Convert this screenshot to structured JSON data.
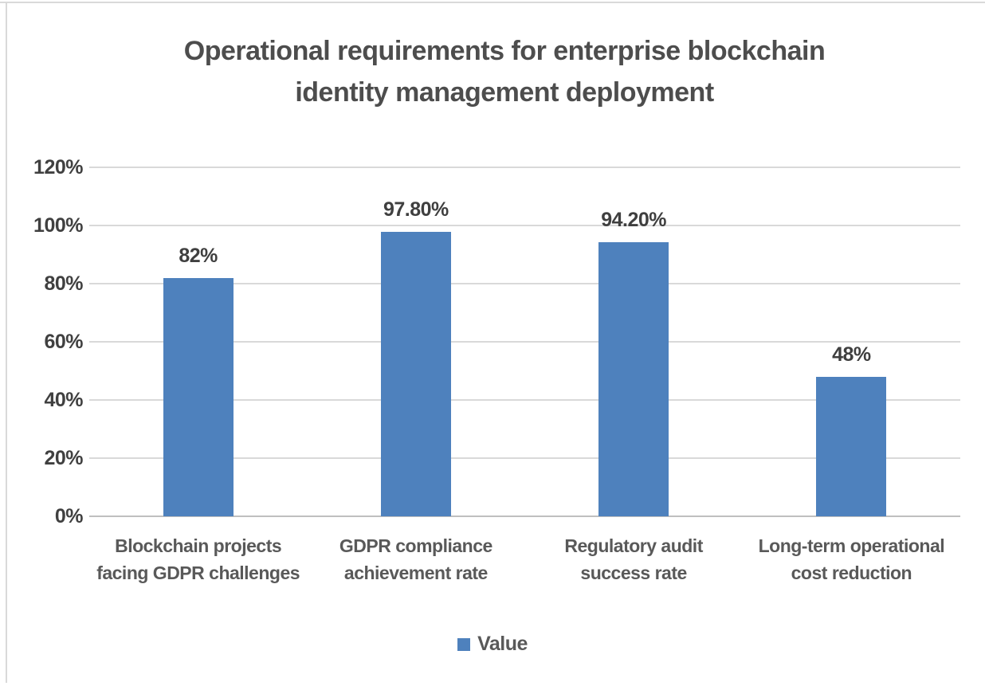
{
  "title": {
    "line1": "Operational requirements for enterprise blockchain",
    "line2": "identity management deployment"
  },
  "chart_data": {
    "type": "bar",
    "title": "Operational requirements for enterprise blockchain identity management deployment",
    "categories": [
      "Blockchain projects facing GDPR challenges",
      "GDPR compliance achievement rate",
      "Regulatory audit success rate",
      "Long-term operational cost reduction"
    ],
    "category_lines": [
      [
        "Blockchain projects",
        "facing GDPR challenges"
      ],
      [
        "GDPR compliance",
        "achievement rate"
      ],
      [
        "Regulatory audit",
        "success rate"
      ],
      [
        "Long-term operational",
        "cost reduction"
      ]
    ],
    "series": [
      {
        "name": "Value",
        "values": [
          82,
          97.8,
          94.2,
          48
        ]
      }
    ],
    "value_labels": [
      "82%",
      "97.80%",
      "94.20%",
      "48%"
    ],
    "y_ticks": [
      "120%",
      "100%",
      "80%",
      "60%",
      "40%",
      "20%",
      "0%"
    ],
    "y_tick_values": [
      120,
      100,
      80,
      60,
      40,
      20,
      0
    ],
    "ylim": [
      0,
      120
    ],
    "xlabel": "",
    "ylabel": "",
    "grid": true,
    "legend_position": "bottom",
    "colors": {
      "bar": "#4e81bd",
      "gridline": "#d9d9d9",
      "axis_line": "#bfbfbf",
      "title_text": "#4d4d4d",
      "category_text": "#595959",
      "value_text": "#3f3f3f"
    }
  }
}
